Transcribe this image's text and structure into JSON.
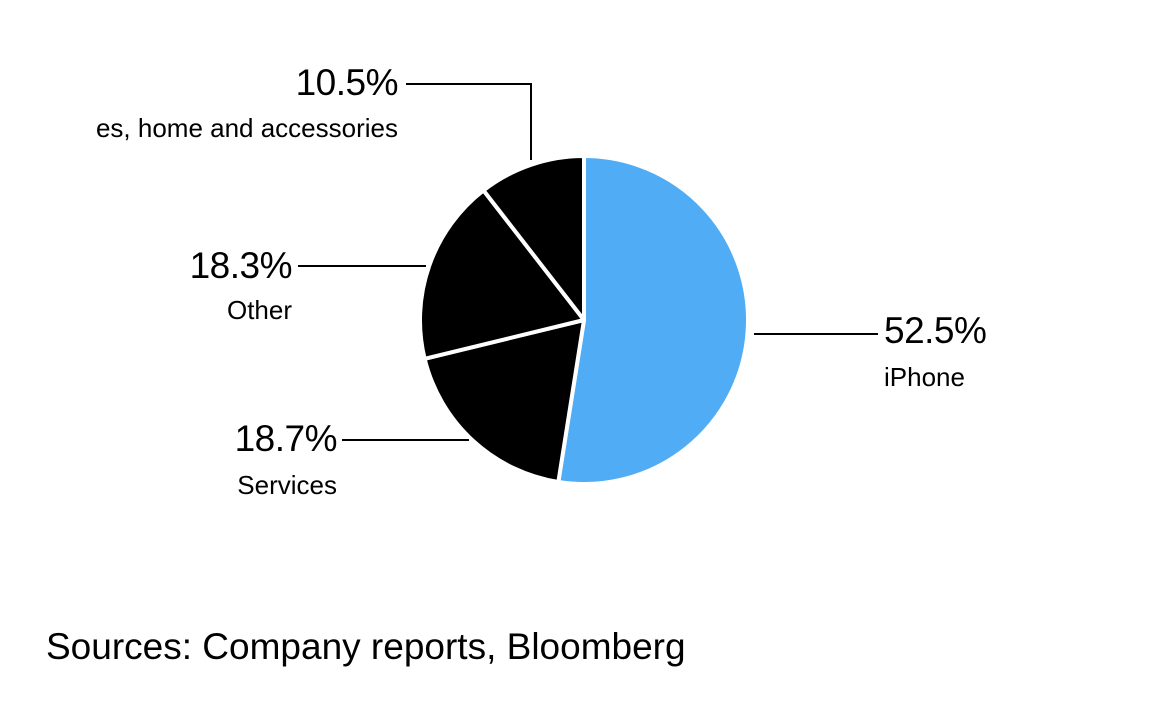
{
  "chart_data": {
    "type": "pie",
    "slices": [
      {
        "label": "iPhone",
        "value": 52.5,
        "value_label": "52.5%",
        "color": "#4facf5"
      },
      {
        "label": "Services",
        "value": 18.7,
        "value_label": "18.7%",
        "color": "#000000"
      },
      {
        "label": "Other",
        "value": 18.3,
        "value_label": "18.3%",
        "color": "#000000"
      },
      {
        "label": "Wearables, home and accessories",
        "value": 10.5,
        "value_label": "10.5%",
        "color": "#000000"
      }
    ],
    "slice_border_color": "#ffffff",
    "label_text_visible": "es, home and accessories"
  },
  "source": "Sources: Company reports, Bloomberg"
}
